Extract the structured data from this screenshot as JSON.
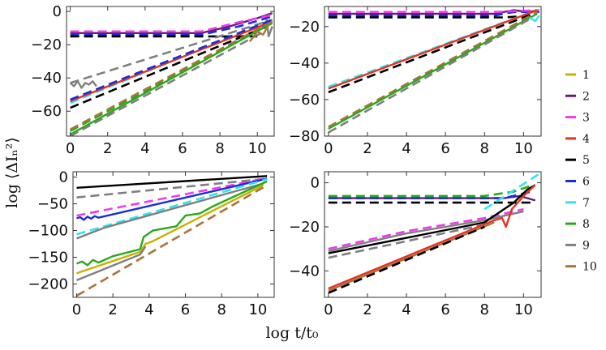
{
  "figure": {
    "xlabel": "log t/t₀",
    "ylabel": "log ⟨ΔIₙ²⟩"
  },
  "legend": [
    {
      "label": "1",
      "color": "#c9b100"
    },
    {
      "label": "2",
      "color": "#6a1a7a"
    },
    {
      "label": "3",
      "color": "#ee3bee"
    },
    {
      "label": "4",
      "color": "#e53222"
    },
    {
      "label": "5",
      "color": "#000000"
    },
    {
      "label": "6",
      "color": "#1a2ed6"
    },
    {
      "label": "7",
      "color": "#2ee5f0"
    },
    {
      "label": "8",
      "color": "#2aa81a"
    },
    {
      "label": "9",
      "color": "#7f7f7f"
    },
    {
      "label": "10",
      "color": "#a8743a"
    }
  ],
  "chart_data": [
    {
      "type": "line",
      "panel": "top-left",
      "xlim": [
        -0.2,
        10.9
      ],
      "ylim": [
        -75,
        3
      ],
      "xticks": [
        0,
        2,
        4,
        6,
        8,
        10
      ],
      "yticks": [
        0,
        -20,
        -40,
        -60
      ],
      "series": [
        {
          "color": "#6a1a7a",
          "dash": "solid",
          "x": [
            0,
            7,
            8.5,
            10,
            10.8
          ],
          "y": [
            -13,
            -13,
            -9,
            -4,
            -1
          ]
        },
        {
          "color": "#1a2ed6",
          "dash": "dashed",
          "x": [
            0,
            7,
            9,
            10.8
          ],
          "y": [
            -14,
            -14,
            -9,
            -3
          ]
        },
        {
          "color": "#ee3bee",
          "dash": "dashed",
          "x": [
            0,
            7,
            8.8,
            10.8
          ],
          "y": [
            -12,
            -12,
            -7,
            -2
          ]
        },
        {
          "color": "#000000",
          "dash": "dashed",
          "x": [
            0,
            7,
            10
          ],
          "y": [
            -15,
            -15,
            -15
          ]
        },
        {
          "color": "#7f7f7f",
          "dash": "solid",
          "x": [
            0,
            0.2,
            0.4,
            0.6,
            0.8,
            1.0,
            1.2,
            1.4
          ],
          "y": [
            -43,
            -45,
            -42,
            -46,
            -43,
            -44,
            -42,
            -45
          ]
        },
        {
          "color": "#7f7f7f",
          "dash": "dashed",
          "x": [
            0,
            10.8
          ],
          "y": [
            -43,
            -5
          ]
        },
        {
          "color": "#7f7f7f",
          "dash": "solid",
          "x": [
            10.2,
            10.4,
            10.5,
            10.6,
            10.8
          ],
          "y": [
            -8,
            -10,
            -5,
            -15,
            -9
          ]
        },
        {
          "color": "#2ee5f0",
          "dash": "dashed",
          "x": [
            0,
            10.8
          ],
          "y": [
            -55,
            -5
          ]
        },
        {
          "color": "#e53222",
          "dash": "solid",
          "x": [
            0,
            10.8
          ],
          "y": [
            -54,
            -6
          ]
        },
        {
          "color": "#1a2ed6",
          "dash": "dashed",
          "x": [
            0,
            10.8
          ],
          "y": [
            -53,
            -5
          ]
        },
        {
          "color": "#000000",
          "dash": "dashed",
          "x": [
            0,
            10.5
          ],
          "y": [
            -58,
            -9
          ]
        },
        {
          "color": "#2aa81a",
          "dash": "dashed",
          "x": [
            0,
            10.8
          ],
          "y": [
            -72,
            -7
          ]
        },
        {
          "color": "#a8743a",
          "dash": "dashed",
          "x": [
            0,
            10.8
          ],
          "y": [
            -71,
            -6
          ]
        },
        {
          "color": "#2aa81a",
          "dash": "solid",
          "x": [
            0,
            10.6
          ],
          "y": [
            -74,
            -8
          ]
        },
        {
          "color": "#7f7f7f",
          "dash": "dashed",
          "x": [
            0,
            10.2
          ],
          "y": [
            -75,
            -13
          ]
        },
        {
          "color": "#a8743a",
          "dash": "solid",
          "x": [
            9.6,
            10.0,
            10.3,
            10.6
          ],
          "y": [
            -18,
            -12,
            -14,
            -8
          ]
        }
      ]
    },
    {
      "type": "line",
      "panel": "top-right",
      "xlim": [
        -0.2,
        10.9
      ],
      "ylim": [
        -80,
        -9
      ],
      "xticks": [
        0,
        2,
        4,
        6,
        8,
        10
      ],
      "yticks": [
        -20,
        -40,
        -60,
        -80
      ],
      "series": [
        {
          "color": "#6a1a7a",
          "dash": "solid",
          "x": [
            0,
            8.5,
            9.5,
            10.2,
            10.8
          ],
          "y": [
            -13,
            -13,
            -11,
            -12,
            -11
          ]
        },
        {
          "color": "#1a2ed6",
          "dash": "dashed",
          "x": [
            0,
            8.5,
            9.5,
            10.8
          ],
          "y": [
            -14,
            -14,
            -12,
            -12
          ]
        },
        {
          "color": "#ee3bee",
          "dash": "dashed",
          "x": [
            0,
            8.5,
            10.8
          ],
          "y": [
            -12,
            -12,
            -11
          ]
        },
        {
          "color": "#000000",
          "dash": "dashed",
          "x": [
            0,
            9,
            10.5
          ],
          "y": [
            -15,
            -15,
            -14
          ]
        },
        {
          "color": "#2ee5f0",
          "dash": "dashed",
          "x": [
            0,
            10.7
          ],
          "y": [
            -53,
            -11
          ]
        },
        {
          "color": "#e53222",
          "dash": "solid",
          "x": [
            0,
            10.7
          ],
          "y": [
            -54,
            -11
          ]
        },
        {
          "color": "#000000",
          "dash": "dashed",
          "x": [
            0,
            10.5
          ],
          "y": [
            -56,
            -13
          ]
        },
        {
          "color": "#a8743a",
          "dash": "dashed",
          "x": [
            0,
            10.7
          ],
          "y": [
            -75,
            -12
          ]
        },
        {
          "color": "#2aa81a",
          "dash": "solid",
          "x": [
            0,
            10.7
          ],
          "y": [
            -76,
            -13
          ]
        },
        {
          "color": "#7f7f7f",
          "dash": "dashed",
          "x": [
            0,
            10.3
          ],
          "y": [
            -78,
            -16
          ]
        },
        {
          "color": "#2ee5f0",
          "dash": "solid",
          "x": [
            10.3,
            10.6,
            10.8
          ],
          "y": [
            -15,
            -17,
            -14
          ]
        }
      ]
    },
    {
      "type": "line",
      "panel": "bottom-left",
      "xlim": [
        -0.2,
        10.9
      ],
      "ylim": [
        -225,
        10
      ],
      "xticks": [
        0,
        2,
        4,
        6,
        8,
        10
      ],
      "yticks": [
        0,
        -50,
        -100,
        -150,
        -200
      ],
      "series": [
        {
          "color": "#000000",
          "dash": "solid",
          "x": [
            0,
            10.5
          ],
          "y": [
            -20,
            2
          ]
        },
        {
          "color": "#7f7f7f",
          "dash": "dashed",
          "x": [
            0,
            10.5
          ],
          "y": [
            -38,
            -3
          ]
        },
        {
          "color": "#ee3bee",
          "dash": "dashed",
          "x": [
            0,
            10.5
          ],
          "y": [
            -72,
            -2
          ]
        },
        {
          "color": "#1a2ed6",
          "dash": "solid",
          "x": [
            0,
            0.2,
            0.4,
            0.6,
            0.8,
            1.0,
            1.2,
            10.5
          ],
          "y": [
            -77,
            -75,
            -80,
            -74,
            -78,
            -73,
            -76,
            -3
          ]
        },
        {
          "color": "#2ee5f0",
          "dash": "dashed",
          "x": [
            0,
            10.5
          ],
          "y": [
            -107,
            -4
          ]
        },
        {
          "color": "#7f7f7f",
          "dash": "solid",
          "x": [
            0,
            1.5,
            10.3
          ],
          "y": [
            -115,
            -95,
            -12
          ]
        },
        {
          "color": "#2aa81a",
          "dash": "solid",
          "x": [
            0,
            0.3,
            0.6,
            0.9,
            1.2,
            2.0,
            3.5,
            3.7,
            4.2,
            5.5,
            6.0,
            6.8,
            7.5,
            10.5
          ],
          "y": [
            -162,
            -158,
            -165,
            -155,
            -160,
            -148,
            -135,
            -112,
            -100,
            -92,
            -72,
            -68,
            -55,
            -8
          ]
        },
        {
          "color": "#c9b100",
          "dash": "solid",
          "x": [
            0,
            3.5,
            3.8,
            4.2,
            10.3
          ],
          "y": [
            -180,
            -140,
            -125,
            -120,
            -15
          ]
        },
        {
          "color": "#7f7f7f",
          "dash": "solid",
          "x": [
            0,
            3.5,
            3.8
          ],
          "y": [
            -193,
            -145,
            -130
          ]
        },
        {
          "color": "#a8743a",
          "dash": "dashed",
          "x": [
            0,
            10.5
          ],
          "y": [
            -222,
            -15
          ]
        }
      ]
    },
    {
      "type": "line",
      "panel": "bottom-right",
      "xlim": [
        -0.2,
        10.9
      ],
      "ylim": [
        -52,
        5
      ],
      "xticks": [
        0,
        2,
        4,
        6,
        8,
        10
      ],
      "yticks": [
        0,
        -20,
        -40
      ],
      "series": [
        {
          "color": "#2aa81a",
          "dash": "dashed",
          "x": [
            0,
            8,
            9.5,
            10.5
          ],
          "y": [
            -6,
            -6,
            -4,
            -1
          ]
        },
        {
          "color": "#6a1a7a",
          "dash": "solid",
          "x": [
            0,
            9,
            9.8,
            10.6
          ],
          "y": [
            -7,
            -7,
            -6,
            -8
          ]
        },
        {
          "color": "#000000",
          "dash": "dashed",
          "x": [
            0,
            9,
            10.5
          ],
          "y": [
            -9,
            -9,
            -9
          ]
        },
        {
          "color": "#1a2ed6",
          "dash": "dashed",
          "x": [
            0,
            9,
            10.4
          ],
          "y": [
            -7,
            -7,
            -4
          ]
        },
        {
          "color": "#ee3bee",
          "dash": "dashed",
          "x": [
            0,
            2,
            4,
            6,
            8,
            10
          ],
          "y": [
            -30,
            -26,
            -22,
            -19,
            -16,
            -12
          ]
        },
        {
          "color": "#7f7f7f",
          "dash": "solid",
          "x": [
            0,
            2,
            4,
            6,
            8,
            10
          ],
          "y": [
            -31,
            -27,
            -23,
            -20,
            -17,
            -13
          ]
        },
        {
          "color": "#000000",
          "dash": "solid",
          "x": [
            0,
            8,
            9.5,
            10.2,
            10.6
          ],
          "y": [
            -32,
            -18,
            -9,
            -3,
            -1
          ]
        },
        {
          "color": "#7f7f7f",
          "dash": "dashed",
          "x": [
            0,
            8
          ],
          "y": [
            -34,
            -19
          ]
        },
        {
          "color": "#e53222",
          "dash": "solid",
          "x": [
            0,
            8.5,
            8.9,
            9.1,
            9.4,
            10.0,
            10.6
          ],
          "y": [
            -48,
            -17,
            -16,
            -20,
            -12,
            -6,
            -1
          ]
        },
        {
          "color": "#a8743a",
          "dash": "solid",
          "x": [
            0,
            8.5
          ],
          "y": [
            -49,
            -18
          ]
        },
        {
          "color": "#000000",
          "dash": "dashed",
          "x": [
            0,
            8
          ],
          "y": [
            -50,
            -20
          ]
        },
        {
          "color": "#2ee5f0",
          "dash": "dashed",
          "x": [
            8,
            10.8
          ],
          "y": [
            -12,
            4
          ]
        }
      ]
    }
  ]
}
